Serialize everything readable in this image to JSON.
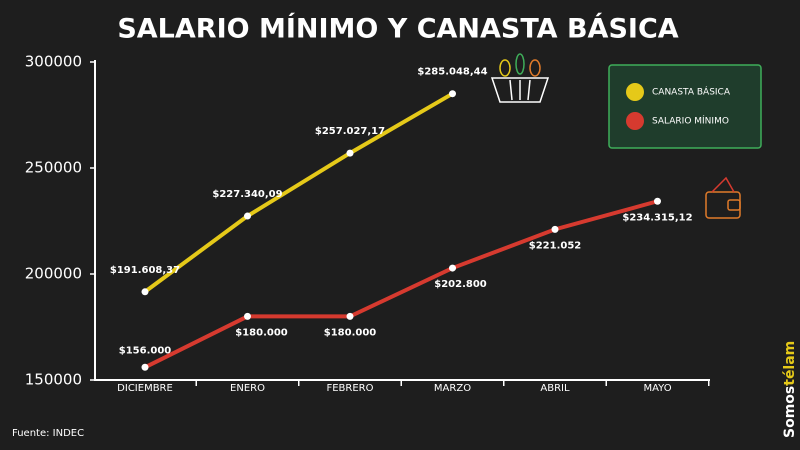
{
  "chart_data": {
    "type": "line",
    "title": "SALARIO MÍNIMO Y CANASTA BÁSICA",
    "categories": [
      "DICIEMBRE",
      "ENERO",
      "FEBRERO",
      "MARZO",
      "ABRIL",
      "MAYO"
    ],
    "series": [
      {
        "name": "CANASTA BÁSICA",
        "color": "#e5c919",
        "values": [
          191608.37,
          227340.09,
          257027.17,
          285048.44,
          null,
          null
        ],
        "value_labels": [
          "$191.608,37",
          "$227.340,09",
          "$257.027,17",
          "$285.048,44",
          null,
          null
        ]
      },
      {
        "name": "SALARIO MÍNIMO",
        "color": "#d63a2f",
        "values": [
          156000,
          180000,
          180000,
          202800,
          221052,
          234315.12
        ],
        "value_labels": [
          "$156.000",
          "$180.000",
          "$180.000",
          "$202.800",
          "$221.052",
          "$234.315,12"
        ]
      }
    ],
    "ylim": [
      150000,
      300000
    ],
    "yticks": [
      150000,
      200000,
      250000,
      300000
    ],
    "source": "Fuente: INDEC",
    "brand": [
      "Somos",
      "télam"
    ]
  }
}
